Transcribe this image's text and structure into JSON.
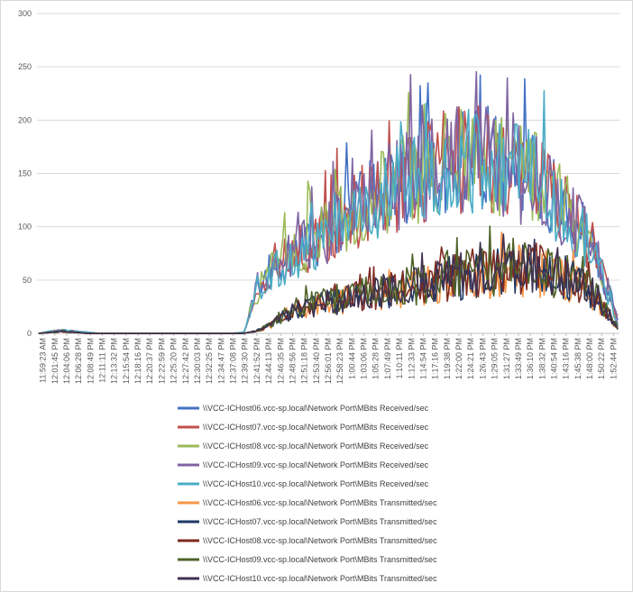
{
  "chart_data": {
    "type": "line",
    "title": "",
    "xlabel": "",
    "ylabel": "",
    "ylim": [
      0,
      300
    ],
    "yticks": [
      0,
      50,
      100,
      150,
      200,
      250,
      300
    ],
    "grid": true,
    "legend_position": "bottom",
    "x_tick_labels": [
      "11:59:23 AM",
      "12:01:45 PM",
      "12:04:06 PM",
      "12:06:28 PM",
      "12:08:49 PM",
      "12:11:11 PM",
      "12:13:32 PM",
      "12:15:54 PM",
      "12:18:16 PM",
      "12:20:37 PM",
      "12:22:59 PM",
      "12:25:20 PM",
      "12:27:42 PM",
      "12:30:03 PM",
      "12:32:25 PM",
      "12:34:47 PM",
      "12:37:08 PM",
      "12:39:30 PM",
      "12:41:52 PM",
      "12:44:13 PM",
      "12:46:35 PM",
      "12:48:56 PM",
      "12:51:18 PM",
      "12:53:40 PM",
      "12:56:01 PM",
      "12:58:23 PM",
      "1:00:44 PM",
      "1:03:06 PM",
      "1:05:28 PM",
      "1:07:49 PM",
      "1:10:11 PM",
      "1:12:33 PM",
      "1:14:54 PM",
      "1:17:16 PM",
      "1:19:38 PM",
      "1:22:00 PM",
      "1:24:21 PM",
      "1:26:43 PM",
      "1:29:05 PM",
      "1:31:27 PM",
      "1:33:49 PM",
      "1:36:10 PM",
      "1:38:32 PM",
      "1:40:54 PM",
      "1:43:16 PM",
      "1:45:38 PM",
      "1:48:00 PM",
      "1:50:22 PM",
      "1:52:44 PM"
    ],
    "series": [
      {
        "name": "\\\\VCC-ICHost06.vcc-sp.local\\Network Port\\MBits Received/sec",
        "color": "#4472c4",
        "kind": "received",
        "values": [
          0,
          2,
          3,
          2,
          1,
          0,
          0,
          0,
          0,
          0,
          0,
          0,
          0,
          0,
          0,
          0,
          0,
          1,
          38,
          55,
          66,
          70,
          82,
          88,
          98,
          106,
          115,
          121,
          126,
          133,
          140,
          146,
          152,
          157,
          161,
          163,
          165,
          164,
          162,
          158,
          152,
          144,
          135,
          124,
          112,
          97,
          79,
          46,
          12
        ]
      },
      {
        "name": "\\\\VCC-ICHost07.vcc-sp.local\\Network Port\\MBits Received/sec",
        "color": "#c0504d",
        "kind": "received",
        "values": [
          0,
          2,
          3,
          2,
          1,
          0,
          0,
          0,
          0,
          0,
          0,
          0,
          0,
          0,
          0,
          0,
          0,
          1,
          36,
          53,
          64,
          72,
          80,
          90,
          96,
          108,
          114,
          122,
          128,
          132,
          141,
          145,
          150,
          158,
          160,
          164,
          166,
          163,
          161,
          157,
          153,
          143,
          136,
          123,
          110,
          98,
          78,
          44,
          14
        ]
      },
      {
        "name": "\\\\VCC-ICHost08.vcc-sp.local\\Network Port\\MBits Received/sec",
        "color": "#9bbb59",
        "kind": "received",
        "values": [
          0,
          2,
          3,
          2,
          1,
          0,
          0,
          0,
          0,
          0,
          0,
          0,
          0,
          0,
          0,
          0,
          0,
          1,
          35,
          56,
          68,
          71,
          83,
          87,
          99,
          105,
          116,
          120,
          127,
          134,
          139,
          147,
          151,
          156,
          162,
          162,
          164,
          165,
          161,
          159,
          151,
          145,
          134,
          125,
          111,
          96,
          80,
          45,
          13
        ]
      },
      {
        "name": "\\\\VCC-ICHost09.vcc-sp.local\\Network Port\\MBits Received/sec",
        "color": "#8064a2",
        "kind": "received",
        "values": [
          0,
          2,
          3,
          2,
          1,
          0,
          0,
          0,
          0,
          0,
          0,
          0,
          0,
          0,
          0,
          0,
          0,
          1,
          37,
          54,
          65,
          73,
          81,
          89,
          97,
          107,
          113,
          123,
          125,
          135,
          138,
          148,
          149,
          159,
          159,
          165,
          163,
          166,
          160,
          160,
          150,
          146,
          133,
          126,
          109,
          99,
          77,
          47,
          11
        ]
      },
      {
        "name": "\\\\VCC-ICHost10.vcc-sp.local\\Network Port\\MBits Received/sec",
        "color": "#4bacc6",
        "kind": "received",
        "values": [
          0,
          2,
          3,
          2,
          1,
          0,
          0,
          0,
          0,
          0,
          0,
          0,
          0,
          0,
          0,
          0,
          0,
          1,
          40,
          57,
          63,
          69,
          79,
          86,
          95,
          104,
          112,
          119,
          124,
          131,
          137,
          143,
          148,
          155,
          158,
          161,
          162,
          161,
          159,
          156,
          150,
          142,
          133,
          122,
          108,
          95,
          76,
          43,
          10
        ]
      },
      {
        "name": "\\\\VCC-ICHost06.vcc-sp.local\\Network Port\\MBits Transmitted/sec",
        "color": "#f79646",
        "kind": "transmitted",
        "values": [
          0,
          1,
          2,
          1,
          0,
          0,
          0,
          0,
          0,
          0,
          0,
          0,
          0,
          0,
          0,
          0,
          0,
          0,
          2,
          6,
          14,
          20,
          24,
          26,
          28,
          30,
          32,
          34,
          36,
          38,
          40,
          42,
          45,
          48,
          50,
          52,
          54,
          56,
          57,
          58,
          59,
          58,
          56,
          53,
          49,
          43,
          34,
          18,
          4
        ]
      },
      {
        "name": "\\\\VCC-ICHost07.vcc-sp.local\\Network Port\\MBits Transmitted/sec",
        "color": "#1f3864",
        "kind": "transmitted",
        "values": [
          0,
          1,
          2,
          1,
          0,
          0,
          0,
          0,
          0,
          0,
          0,
          0,
          0,
          0,
          0,
          0,
          0,
          0,
          2,
          7,
          15,
          21,
          25,
          27,
          29,
          31,
          33,
          35,
          37,
          39,
          41,
          43,
          46,
          49,
          51,
          53,
          55,
          57,
          58,
          59,
          60,
          59,
          57,
          54,
          50,
          44,
          35,
          19,
          5
        ]
      },
      {
        "name": "\\\\VCC-ICHost08.vcc-sp.local\\Network Port\\MBits Transmitted/sec",
        "color": "#7f2a20",
        "kind": "transmitted",
        "values": [
          0,
          1,
          2,
          1,
          0,
          0,
          0,
          0,
          0,
          0,
          0,
          0,
          0,
          0,
          0,
          0,
          0,
          0,
          2,
          6,
          16,
          22,
          26,
          28,
          30,
          32,
          34,
          36,
          38,
          40,
          42,
          44,
          47,
          50,
          52,
          54,
          56,
          58,
          59,
          60,
          61,
          60,
          58,
          55,
          51,
          45,
          36,
          20,
          5
        ]
      },
      {
        "name": "\\\\VCC-ICHost09.vcc-sp.local\\Network Port\\MBits Transmitted/sec",
        "color": "#4f6228",
        "kind": "transmitted",
        "values": [
          0,
          1,
          2,
          1,
          0,
          0,
          0,
          0,
          0,
          0,
          0,
          0,
          0,
          0,
          0,
          0,
          0,
          0,
          2,
          7,
          15,
          23,
          27,
          29,
          31,
          33,
          35,
          37,
          39,
          41,
          43,
          45,
          48,
          51,
          53,
          55,
          57,
          59,
          60,
          61,
          62,
          61,
          59,
          56,
          52,
          46,
          37,
          21,
          6
        ]
      },
      {
        "name": "\\\\VCC-ICHost10.vcc-sp.local\\Network Port\\MBits Transmitted/sec",
        "color": "#3f3151",
        "kind": "transmitted",
        "values": [
          0,
          1,
          2,
          1,
          0,
          0,
          0,
          0,
          0,
          0,
          0,
          0,
          0,
          0,
          0,
          0,
          0,
          0,
          2,
          6,
          14,
          22,
          25,
          27,
          29,
          31,
          33,
          36,
          38,
          40,
          42,
          44,
          47,
          50,
          52,
          54,
          56,
          58,
          60,
          62,
          63,
          62,
          60,
          57,
          53,
          47,
          38,
          22,
          6
        ]
      }
    ]
  }
}
